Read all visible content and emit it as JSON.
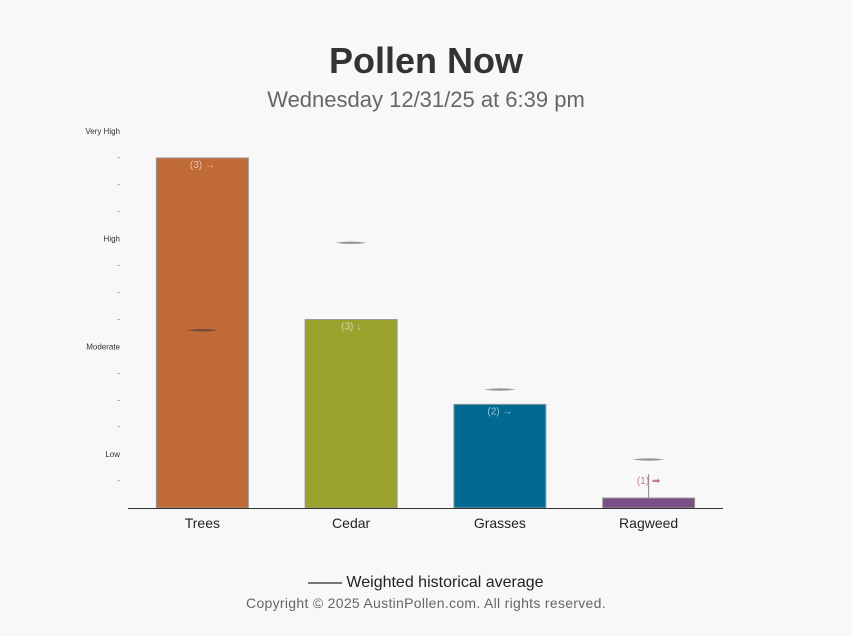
{
  "chart_data": {
    "type": "bar",
    "title": "Pollen Now",
    "subtitle": "Wednesday 12/31/25 at 6:39 pm",
    "categories": [
      "Trees",
      "Cedar",
      "Grasses",
      "Ragweed"
    ],
    "values": [
      13,
      7,
      3.85,
      0.37
    ],
    "historical_average": [
      6.6,
      9.85,
      4.4,
      1.8
    ],
    "bar_labels": [
      "(3) →",
      "(3) ↓",
      "(2) →",
      "(1) ➡"
    ],
    "colors": [
      "#c06a37",
      "#9aa22c",
      "#006a93",
      "#7a4f88"
    ],
    "y_levels": [
      {
        "label": "Low",
        "value": 2
      },
      {
        "label": "Moderate",
        "value": 6
      },
      {
        "label": "High",
        "value": 10
      },
      {
        "label": "Very High",
        "value": 14
      }
    ],
    "y_minor_ticks": [
      1,
      3,
      4,
      5,
      7,
      8,
      9,
      11,
      12,
      13
    ],
    "ylim": [
      0,
      14
    ],
    "legend": {
      "label": "Weighted historical average",
      "position": "bottom"
    }
  },
  "footer": {
    "copyright": "Copyright © 2025 AustinPollen.com.  All rights reserved."
  }
}
